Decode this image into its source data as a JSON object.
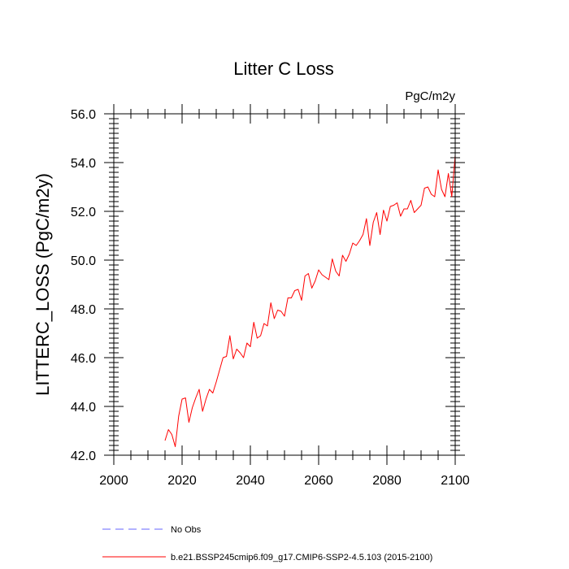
{
  "chart_data": {
    "type": "line",
    "title": "Litter C Loss",
    "units": "PgC/m2y",
    "ylabel": "LITTERC_LOSS  (PgC/m2y)",
    "xlabel": "",
    "xlim": [
      2000,
      2100
    ],
    "ylim": [
      42.0,
      56.0
    ],
    "x_ticks": [
      "2000",
      "2020",
      "2040",
      "2060",
      "2080",
      "2100"
    ],
    "y_ticks": [
      "42.0",
      "44.0",
      "46.0",
      "48.0",
      "50.0",
      "52.0",
      "54.0",
      "56.0"
    ],
    "grid": false,
    "legend_position": "bottom",
    "series": [
      {
        "name": "No Obs",
        "color": "#6666ff",
        "dash": true,
        "x": [],
        "y": []
      },
      {
        "name": "b.e21.BSSP245cmip6.f09_g17.CMIP6-SSP2-4.5.103 (2015-2100)",
        "color": "#ff0000",
        "dash": false,
        "x": [
          2015,
          2016,
          2017,
          2018,
          2019,
          2020,
          2021,
          2022,
          2023,
          2024,
          2025,
          2026,
          2027,
          2028,
          2029,
          2030,
          2031,
          2032,
          2033,
          2034,
          2035,
          2036,
          2037,
          2038,
          2039,
          2040,
          2041,
          2042,
          2043,
          2044,
          2045,
          2046,
          2047,
          2048,
          2049,
          2050,
          2051,
          2052,
          2053,
          2054,
          2055,
          2056,
          2057,
          2058,
          2059,
          2060,
          2061,
          2062,
          2063,
          2064,
          2065,
          2066,
          2067,
          2068,
          2069,
          2070,
          2071,
          2072,
          2073,
          2074,
          2075,
          2076,
          2077,
          2078,
          2079,
          2080,
          2081,
          2082,
          2083,
          2084,
          2085,
          2086,
          2087,
          2088,
          2089,
          2090,
          2091,
          2092,
          2093,
          2094,
          2095,
          2096,
          2097,
          2098,
          2099,
          2100
        ],
        "y": [
          42.6,
          43.05,
          42.85,
          42.35,
          43.6,
          44.3,
          44.35,
          43.35,
          43.95,
          44.35,
          44.7,
          43.8,
          44.3,
          44.7,
          44.55,
          45.0,
          45.5,
          46.0,
          46.05,
          46.9,
          45.95,
          46.35,
          46.2,
          46.0,
          46.6,
          46.45,
          47.45,
          46.8,
          46.9,
          47.4,
          47.3,
          48.25,
          47.6,
          47.95,
          47.9,
          47.7,
          48.45,
          48.45,
          48.75,
          48.8,
          48.35,
          49.35,
          49.45,
          48.85,
          49.15,
          49.6,
          49.4,
          49.3,
          49.2,
          50.05,
          49.55,
          49.35,
          50.2,
          49.95,
          50.25,
          50.7,
          50.6,
          50.8,
          51.05,
          51.7,
          50.6,
          51.55,
          51.95,
          51.05,
          52.05,
          51.6,
          52.2,
          52.25,
          52.35,
          51.8,
          52.1,
          52.1,
          52.45,
          51.95,
          52.1,
          52.25,
          52.95,
          53.0,
          52.7,
          52.6,
          53.7,
          52.9,
          52.6,
          53.55,
          52.6,
          54.3
        ]
      }
    ]
  }
}
